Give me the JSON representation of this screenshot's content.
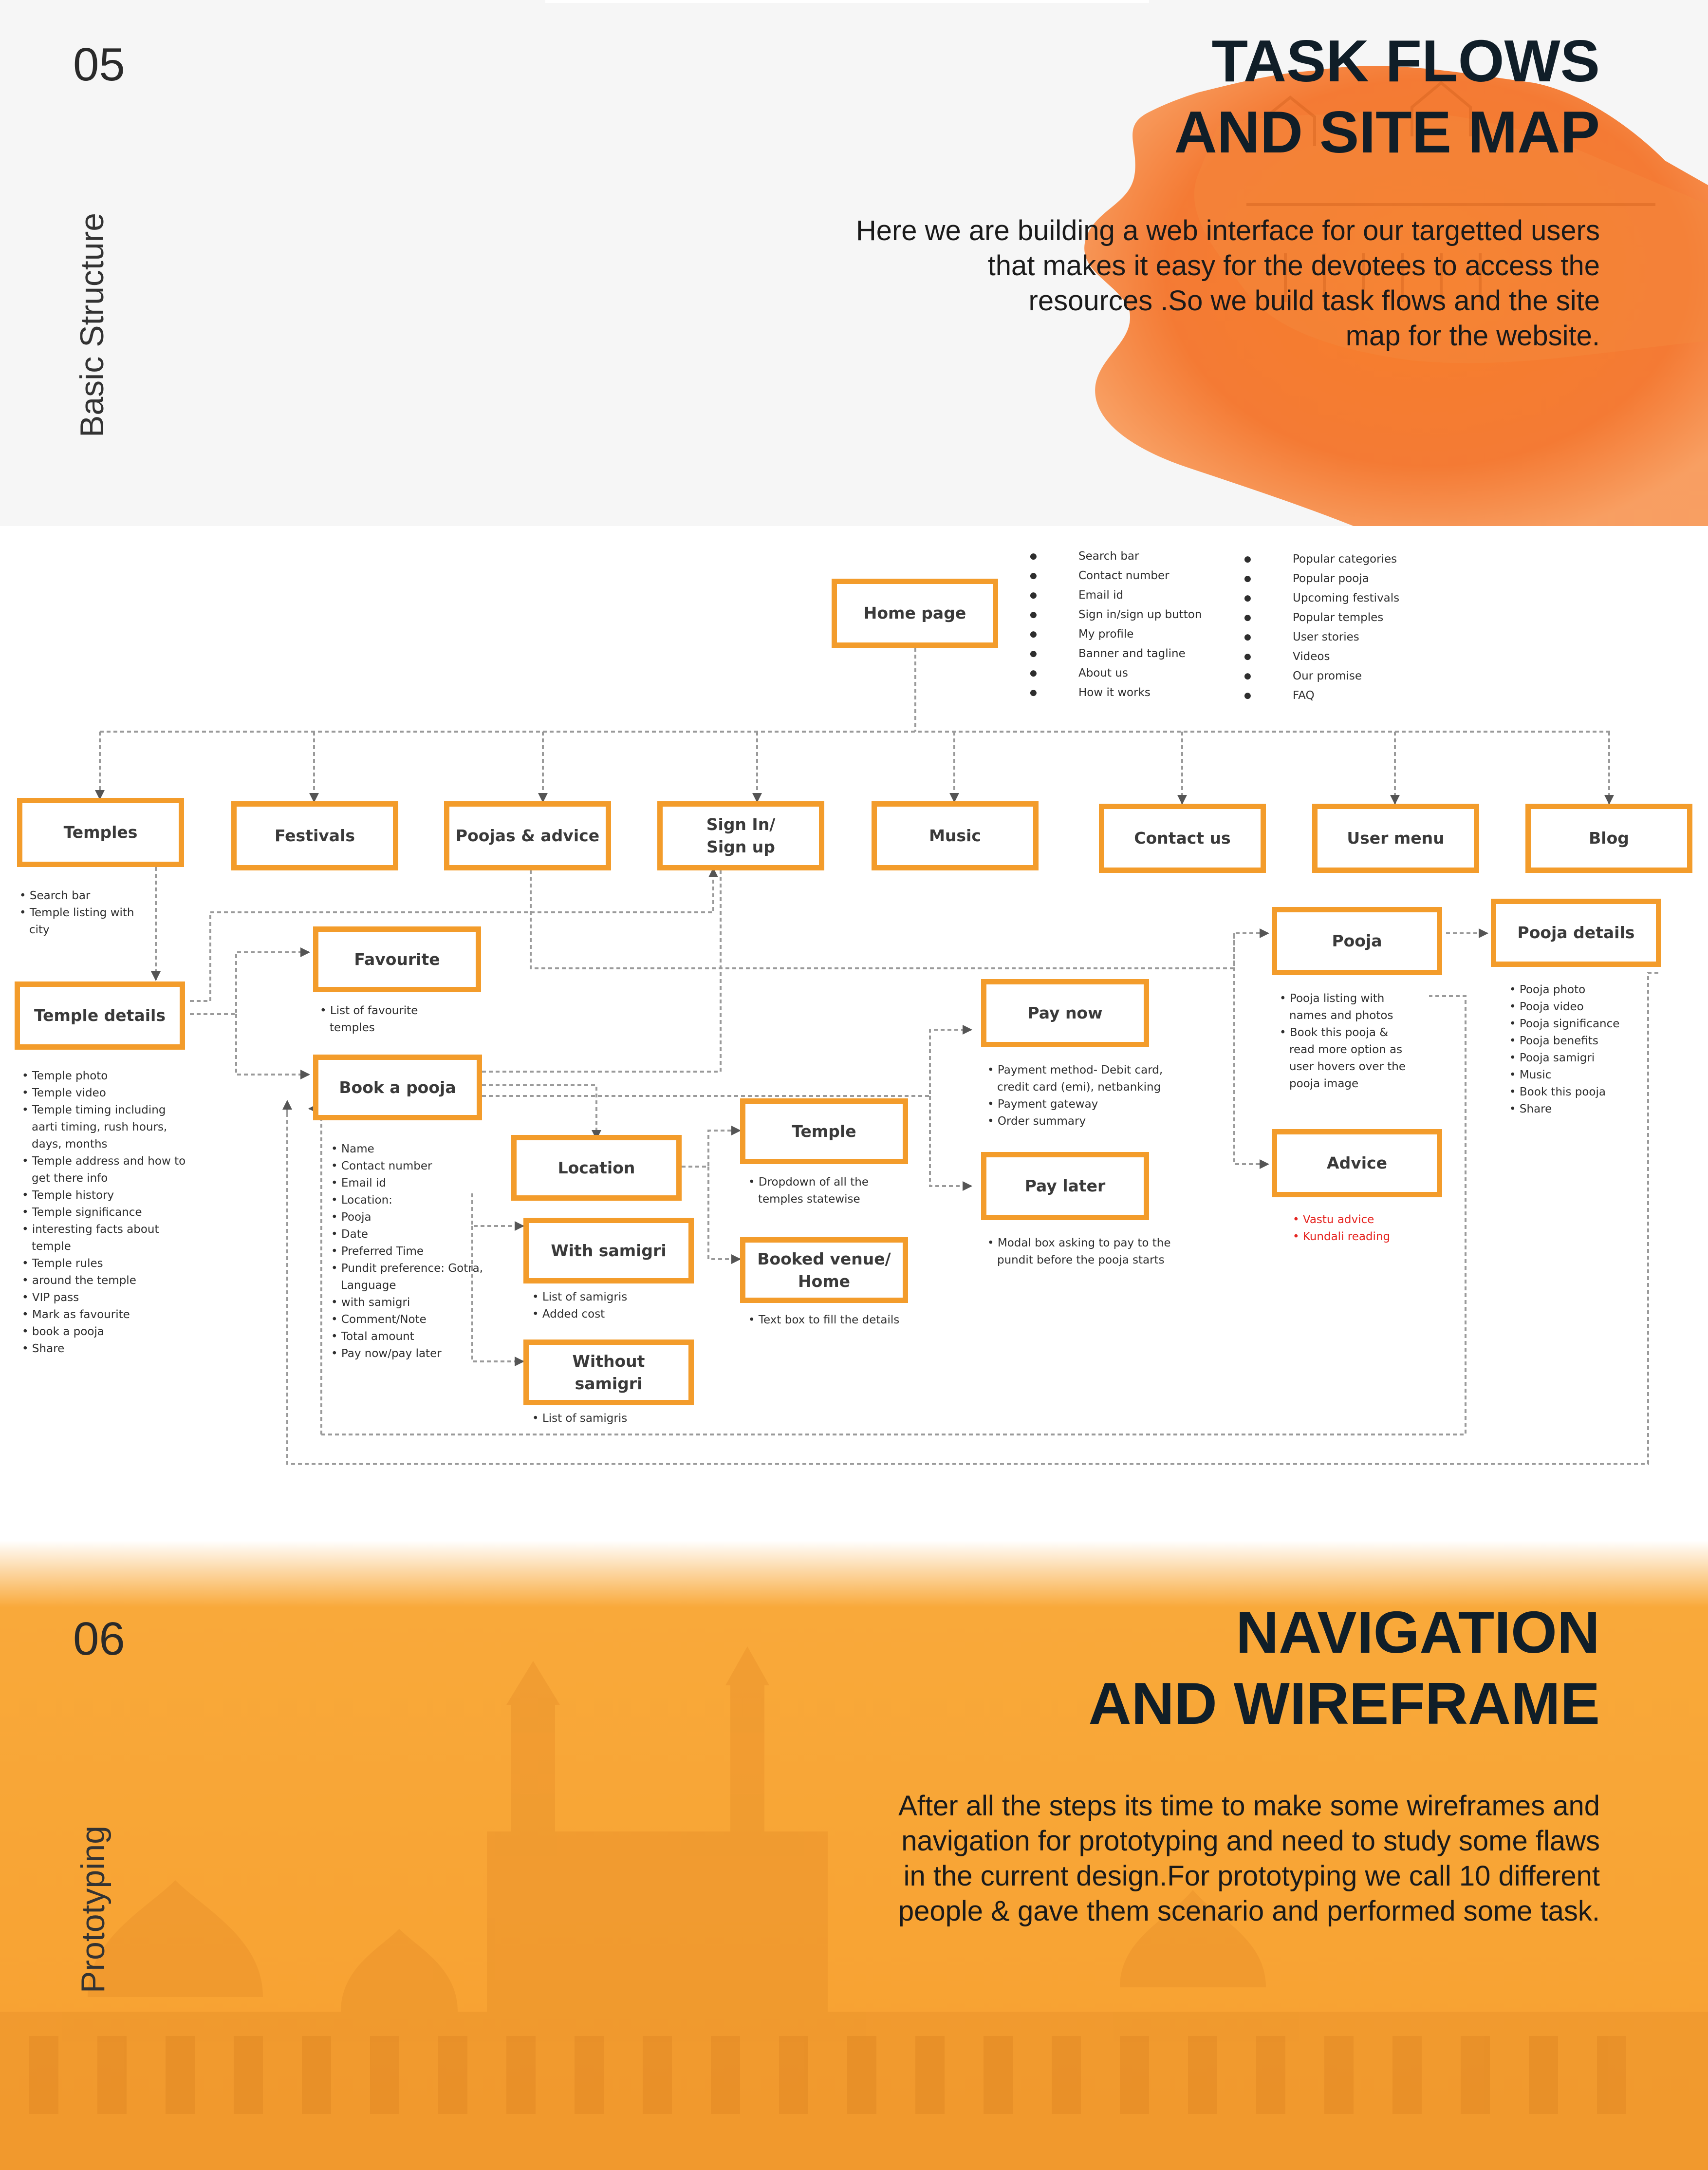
{
  "section5": {
    "number": "05",
    "side_label": "Basic Structure",
    "title_line1": "TASK FLOWS",
    "title_line2": "AND SITE MAP",
    "description": [
      "Here we are building a web interface for our targetted users",
      "that makes it easy for the devotees to access the",
      "resources .So we build task flows and the site",
      "map for the website."
    ],
    "accent_color": "#f26a1b"
  },
  "diagram": {
    "home_features_left": [
      "Search bar",
      "Contact number",
      "Email id",
      "Sign in/sign up button",
      "My profile",
      "Banner and tagline",
      "About us",
      "How it works"
    ],
    "home_features_right": [
      "Popular categories",
      "Popular pooja",
      "Upcoming  festivals",
      "Popular temples",
      "User stories",
      "Videos",
      "Our promise",
      "FAQ"
    ],
    "nodes": {
      "home": "Home page",
      "temples": "Temples",
      "festivals": "Festivals",
      "poojas": "Poojas & advice",
      "signin": "Sign In/\nSign up",
      "music": "Music",
      "contact": "Contact us",
      "usermenu": "User menu",
      "blog": "Blog",
      "temple_details": "Temple details",
      "favourite": "Favourite",
      "book_pooja": "Book a pooja",
      "location": "Location",
      "temple": "Temple",
      "booked_venue": "Booked venue/\nHome",
      "with_samigri": "With samigri",
      "without_samigri": "Without\nsamigri",
      "pay_now": "Pay now",
      "pay_later": "Pay later",
      "pooja": "Pooja",
      "advice": "Advice",
      "pooja_details": "Pooja details"
    },
    "notes": {
      "temples": [
        "Search bar",
        "Temple listing with city"
      ],
      "temple_details": [
        "Temple photo",
        "Temple video",
        "Temple timing including aarti timing, rush hours, days, months",
        "Temple address and how to get there info",
        "Temple history",
        "Temple significance",
        "interesting facts about temple",
        "Temple rules",
        "around the temple",
        "VIP pass",
        "Mark as favourite",
        "book a pooja",
        "Share"
      ],
      "favourite": [
        "List of favourite temples"
      ],
      "book_pooja": [
        "Name",
        "Contact number",
        "Email id",
        "Location:",
        "Pooja",
        "Date",
        "Preferred Time",
        "Pundit preference: Gotra, Language",
        "with samigri",
        "Comment/Note",
        "Total amount",
        "Pay now/pay later"
      ],
      "temple": [
        "Dropdown of all the temples statewise"
      ],
      "booked_venue": [
        "Text box to fill the details"
      ],
      "with_samigri": [
        "List of samigris",
        "Added cost"
      ],
      "without_samigri": [
        "List of samigris"
      ],
      "pay_now": [
        "Payment method- Debit card, credit card (emi), netbanking",
        "Payment gateway",
        "Order summary"
      ],
      "pay_later": [
        "Modal box asking to pay to the pundit before the pooja starts"
      ],
      "pooja": [
        "Pooja listing with names and photos",
        "Book this pooja & read more option as user hovers over the pooja image"
      ],
      "advice": [
        "Vastu advice",
        "Kundali reading"
      ],
      "pooja_details": [
        "Pooja photo",
        "Pooja  video",
        "Pooja significance",
        "Pooja benefits",
        "Pooja samigri",
        "Music",
        "Book this pooja",
        "Share"
      ]
    },
    "colors": {
      "box_border": "#f39c2b",
      "connector": "#9a9a9a",
      "arrow": "#555555",
      "highlight_text": "#e52420"
    }
  },
  "section6": {
    "number": "06",
    "side_label": "Prototyping",
    "title_line1": "NAVIGATION",
    "title_line2": "AND WIREFRAME",
    "description": [
      "After all the steps its time to make some wireframes and",
      "navigation for prototyping and need to study some flaws",
      "in the current design.For prototyping we call 10 different",
      "people & gave them scenario and performed some task."
    ],
    "accent_color": "#f9a93a"
  }
}
